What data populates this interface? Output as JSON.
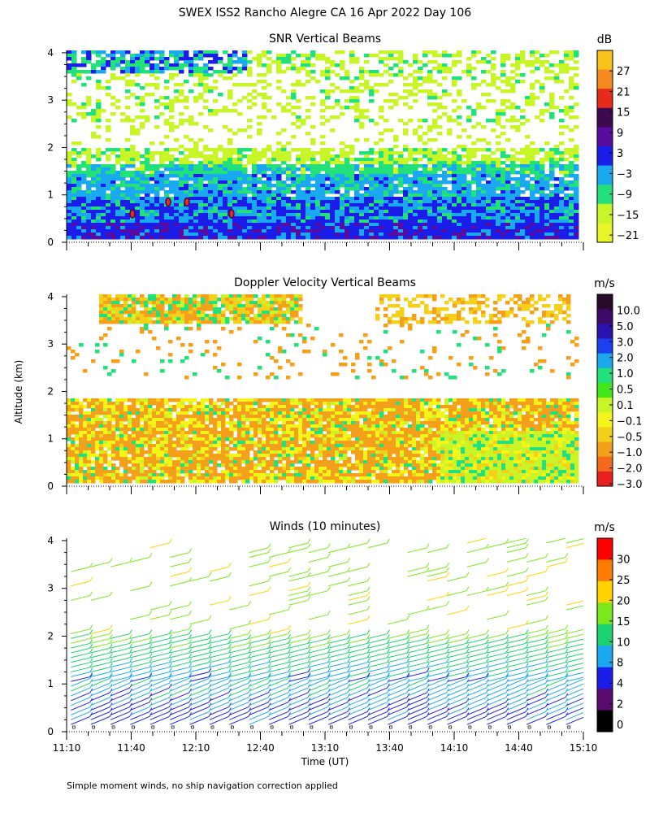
{
  "figure": {
    "title": "SWEX ISS2 Rancho Alegre CA  16 Apr 2022 Day 106",
    "ylabel": "Altitude (km)",
    "xlabel": "Time (UT)",
    "footnote": "Simple moment winds, no ship navigation correction applied",
    "x_ticks": [
      "11:10",
      "11:40",
      "12:10",
      "12:40",
      "13:10",
      "13:40",
      "14:10",
      "14:40",
      "15:10"
    ],
    "y_ticks": [
      "0",
      "1",
      "2",
      "3",
      "4"
    ],
    "x_range_min": [
      670,
      910
    ],
    "y_range_km": [
      0,
      4.05
    ]
  },
  "chart_data": [
    {
      "type": "heatmap",
      "title": "SNR Vertical Beams",
      "units": "dB",
      "ylabel": "Altitude (km)",
      "ylim": [
        0,
        4
      ],
      "colorbar": {
        "labels": [
          "27",
          "21",
          "15",
          "9",
          "3",
          "−3",
          "−9",
          "−15",
          "−21"
        ],
        "colors": [
          "#f7c21a",
          "#f58a1f",
          "#e82a1a",
          "#3d0a4f",
          "#5a0ca0",
          "#1a1ee8",
          "#1aa8f0",
          "#22e07a",
          "#c8f528",
          "#e8f528"
        ]
      },
      "layers": [
        {
          "alt_km": [
            0.15,
            0.45
          ],
          "snr_db": 3
        },
        {
          "alt_km": [
            0.45,
            1.0
          ],
          "snr_db": -3
        },
        {
          "alt_km": [
            1.0,
            1.45
          ],
          "snr_db": -9
        },
        {
          "alt_km": [
            1.45,
            1.7
          ],
          "snr_db": -12
        },
        {
          "alt_km": [
            1.7,
            2.0
          ],
          "snr_db": -18
        },
        {
          "alt_km": [
            3.6,
            4.0
          ],
          "snr_db": -15
        }
      ]
    },
    {
      "type": "heatmap",
      "title": "Doppler Velocity Vertical Beams",
      "units": "m/s",
      "ylabel": "Altitude (km)",
      "ylim": [
        0,
        4
      ],
      "colorbar": {
        "labels": [
          "10.0",
          "5.0",
          "3.0",
          "2.0",
          "1.0",
          "0.5",
          "0.1",
          "−0.1",
          "−0.5",
          "−1.0",
          "−2.0",
          "−3.0"
        ],
        "colors": [
          "#2a0a2a",
          "#3d0a6a",
          "#2a12b0",
          "#1a40f0",
          "#1aa8f0",
          "#22e07a",
          "#40e81a",
          "#c8f528",
          "#f5f51a",
          "#f5d01a",
          "#f5a01a",
          "#f56a1a",
          "#e82020"
        ]
      },
      "layers": [
        {
          "alt_km": [
            0.1,
            1.9
          ],
          "velocity_ms": -0.5
        },
        {
          "alt_km": [
            3.5,
            4.0
          ],
          "velocity_ms": -0.8
        }
      ]
    },
    {
      "type": "wind-barbs",
      "title": "Winds (10 minutes)",
      "units": "m/s",
      "ylabel": "Altitude (km)",
      "ylim": [
        0,
        4
      ],
      "colorbar": {
        "labels": [
          "30",
          "25",
          "20",
          "15",
          "10",
          "8",
          "4",
          "2",
          "0"
        ],
        "colors": [
          "#ff0000",
          "#ff7a00",
          "#ffd200",
          "#7ae81a",
          "#1ad270",
          "#1aa8f0",
          "#1a1ee8",
          "#5a0a6e",
          "#000000"
        ]
      },
      "profiles": [
        {
          "low_ms": 6,
          "high_ms": 14
        },
        {
          "low_ms": 8,
          "high_ms": 18
        }
      ]
    }
  ]
}
